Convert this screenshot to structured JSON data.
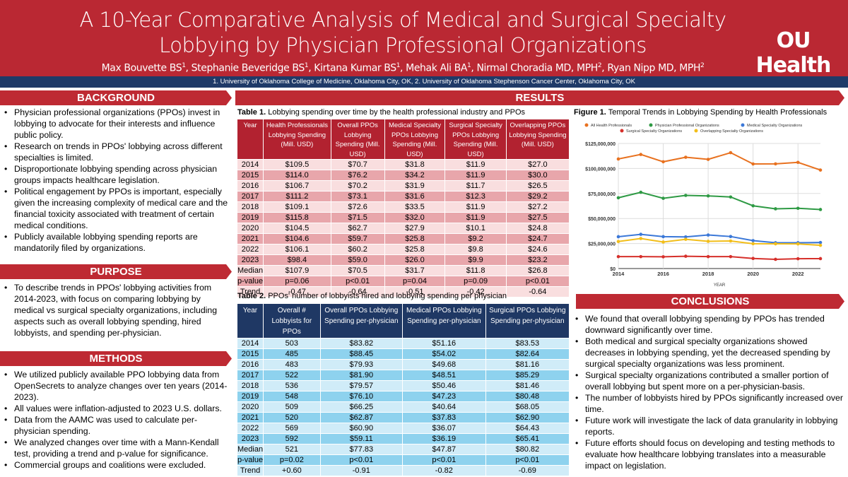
{
  "header": {
    "title": "A 10-Year Comparative Analysis of Medical and Surgical Specialty Lobbying by Physician Professional Organizations",
    "authors": [
      {
        "name": "Max Bouvette BS",
        "sup": "1"
      },
      {
        "name": "Stephanie Beveridge BS",
        "sup": "1"
      },
      {
        "name": "Kirtana Kumar BS",
        "sup": "1"
      },
      {
        "name": "Mehak Ali BA",
        "sup": "1"
      },
      {
        "name": "Nirmal Choradia MD, MPH",
        "sup": "2"
      },
      {
        "name": "Ryan Nipp MD, MPH",
        "sup": "2"
      }
    ],
    "affiliations": "1. University of Oklahoma College of Medicine, Oklahoma City, OK, 2. University of Oklahoma Stephenson Cancer Center, Oklahoma City, OK",
    "logo": "OU Health"
  },
  "sections": {
    "background": "BACKGROUND",
    "results": "RESULTS",
    "purpose": "PURPOSE",
    "methods": "METHODS",
    "conclusions": "CONCLUSIONS"
  },
  "background": [
    "Physician professional organizations (PPOs) invest in lobbying to advocate for their interests and influence public policy.",
    "Research on trends in PPOs' lobbying across different specialties is limited.",
    "Disproportionate lobbying spending across physician groups impacts healthcare legislation.",
    "Political engagement by PPOs is important, especially given the increasing complexity of medical care and the financial toxicity associated with treatment of certain medical conditions.",
    "Publicly available lobbying spending reports are mandatorily filed by organizations."
  ],
  "purpose": [
    "To describe trends in PPOs' lobbying activities from 2014-2023, with focus on comparing lobbying by medical vs surgical specialty organizations, including aspects such as overall lobbying spending, hired lobbyists, and spending per-physician."
  ],
  "methods": [
    "We utilized publicly available PPO lobbying data from OpenSecrets to analyze changes over ten years (2014-2023).",
    "All values were inflation-adjusted to 2023 U.S. dollars.",
    "Data from the AAMC was used to calculate per-physician spending.",
    "We analyzed changes over time with a Mann-Kendall test, providing a trend and p-value for significance.",
    "Commercial groups and coalitions were excluded."
  ],
  "conclusions": [
    "We found that overall lobbying spending by PPOs has trended downward significantly over time.",
    "Both medical and surgical specialty organizations showed decreases in lobbying spending, yet the decreased spending by surgical specialty organizations was less prominent.",
    "Surgical specialty organizations contributed a smaller portion of overall lobbying but spent more on a per-physician-basis.",
    "The number of lobbyists hired by PPOs significantly increased over time.",
    "Future work will investigate the lack of data granularity in lobbying reports.",
    "Future efforts should focus on developing and testing methods to evaluate how healthcare lobbying translates into a measurable impact on legislation."
  ],
  "table1": {
    "label": "Table 1.",
    "caption": "Lobbying spending over time by the health professional industry and PPOs",
    "headers": [
      "Year",
      "Health Professionals Lobbying Spending (Mill. USD)",
      "Overall PPOs Lobbying Spending (Mill. USD)",
      "Medical Specialty PPOs Lobbying Spending (Mill. USD)",
      "Surgical Specialty PPOs Lobbying Spending (Mill. USD)",
      "Overlapping PPOs Lobbying Spending (Mill. USD)"
    ],
    "rows": [
      [
        "2014",
        "$109.5",
        "$70.7",
        "$31.8",
        "$11.9",
        "$27.0"
      ],
      [
        "2015",
        "$114.0",
        "$76.2",
        "$34.2",
        "$11.9",
        "$30.0"
      ],
      [
        "2016",
        "$106.7",
        "$70.2",
        "$31.9",
        "$11.7",
        "$26.5"
      ],
      [
        "2017",
        "$111.2",
        "$73.1",
        "$31.6",
        "$12.3",
        "$29.2"
      ],
      [
        "2018",
        "$109.1",
        "$72.6",
        "$33.5",
        "$11.9",
        "$27.2"
      ],
      [
        "2019",
        "$115.8",
        "$71.5",
        "$32.0",
        "$11.9",
        "$27.5"
      ],
      [
        "2020",
        "$104.5",
        "$62.7",
        "$27.9",
        "$10.1",
        "$24.8"
      ],
      [
        "2021",
        "$104.6",
        "$59.7",
        "$25.8",
        "$9.2",
        "$24.7"
      ],
      [
        "2022",
        "$106.1",
        "$60.2",
        "$25.8",
        "$9.8",
        "$24.6"
      ],
      [
        "2023",
        "$98.4",
        "$59.0",
        "$26.0",
        "$9.9",
        "$23.2"
      ],
      [
        "Median",
        "$107.9",
        "$70.5",
        "$31.7",
        "$11.8",
        "$26.8"
      ],
      [
        "p-value",
        "p=0.06",
        "p<0.01",
        "p=0.04",
        "p=0.09",
        "p<0.01"
      ],
      [
        "Trend",
        "-0.47",
        "-0.64",
        "-0.51",
        "-0.42",
        "-0.64"
      ]
    ]
  },
  "table2": {
    "label": "Table 2.",
    "caption": "PPOs' number of lobbyists hired and lobbying spending per physician",
    "headers": [
      "Year",
      "Overall # Lobbyists for PPOs",
      "Overall PPOs Lobbying Spending per-physician",
      "Medical PPOs Lobbying Spending per-physician",
      "Surgical PPOs Lobbying Spending per-physician"
    ],
    "rows": [
      [
        "2014",
        "503",
        "$83.82",
        "$51.16",
        "$83.53"
      ],
      [
        "2015",
        "485",
        "$88.45",
        "$54.02",
        "$82.64"
      ],
      [
        "2016",
        "483",
        "$79.93",
        "$49.68",
        "$81.16"
      ],
      [
        "2017",
        "522",
        "$81.90",
        "$48.51",
        "$85.29"
      ],
      [
        "2018",
        "536",
        "$79.57",
        "$50.46",
        "$81.46"
      ],
      [
        "2019",
        "548",
        "$76.10",
        "$47.23",
        "$80.48"
      ],
      [
        "2020",
        "509",
        "$66.25",
        "$40.64",
        "$68.05"
      ],
      [
        "2021",
        "520",
        "$62.87",
        "$37.83",
        "$62.90"
      ],
      [
        "2022",
        "569",
        "$60.90",
        "$36.07",
        "$64.43"
      ],
      [
        "2023",
        "592",
        "$59.11",
        "$36.19",
        "$65.41"
      ],
      [
        "Median",
        "521",
        "$77.83",
        "$47.87",
        "$80.82"
      ],
      [
        "p-value",
        "p=0.02",
        "p<0.01",
        "p<0.01",
        "p<0.01"
      ],
      [
        "Trend",
        "+0.60",
        "-0.91",
        "-0.82",
        "-0.69"
      ]
    ]
  },
  "chart_data": {
    "type": "line",
    "label": "Figure 1.",
    "title": "Temporal Trends in Lobbying Spending by Health Professionals",
    "xlabel": "YEAR",
    "ylabel": "",
    "x": [
      2014,
      2015,
      2016,
      2017,
      2018,
      2019,
      2020,
      2021,
      2022,
      2023
    ],
    "xticks": [
      "2014",
      "2016",
      "2018",
      "2020",
      "2022"
    ],
    "yticks": [
      "$0",
      "$25,000,000",
      "$50,000,000",
      "$75,000,000",
      "$100,000,000",
      "$125,000,000"
    ],
    "ylim": [
      0,
      125000000
    ],
    "grid": true,
    "legend": "top",
    "series": [
      {
        "name": "All Health Professionals",
        "color": "#E8711F",
        "values": [
          109.5,
          114.0,
          106.7,
          111.2,
          109.1,
          115.8,
          104.5,
          104.6,
          106.1,
          98.4
        ]
      },
      {
        "name": "Physician Professional Organizations",
        "color": "#2E9A44",
        "values": [
          70.7,
          76.2,
          70.2,
          73.1,
          72.6,
          71.5,
          62.7,
          59.7,
          60.2,
          59.0
        ]
      },
      {
        "name": "Medical Specialty Organizations",
        "color": "#3B78D8",
        "values": [
          31.8,
          34.2,
          31.9,
          31.6,
          33.5,
          32.0,
          27.9,
          25.8,
          25.8,
          26.0
        ]
      },
      {
        "name": "Surgical Specialty Organizations",
        "color": "#D6302B",
        "values": [
          11.9,
          11.9,
          11.7,
          12.3,
          11.9,
          11.9,
          10.1,
          9.2,
          9.8,
          9.9
        ]
      },
      {
        "name": "Overlapping Specialty Organizations",
        "color": "#F2BE1A",
        "values": [
          27.0,
          30.0,
          26.5,
          29.2,
          27.2,
          27.5,
          24.8,
          24.7,
          24.6,
          23.2
        ]
      }
    ],
    "value_unit": "millions USD"
  }
}
